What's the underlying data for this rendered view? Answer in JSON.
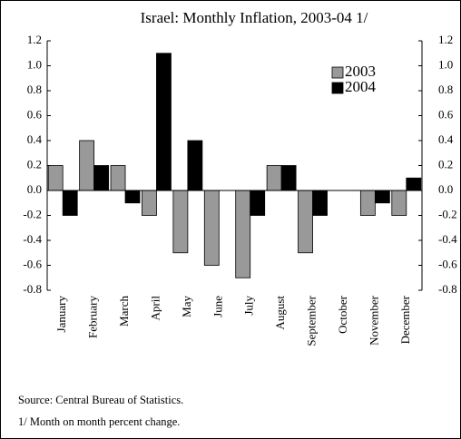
{
  "chart_data": {
    "type": "bar",
    "title": "Israel:  Monthly Inflation, 2003-04 1/",
    "categories": [
      "January",
      "February",
      "March",
      "April",
      "May",
      "June",
      "July",
      "August",
      "September",
      "October",
      "November",
      "December"
    ],
    "series": [
      {
        "name": "2003",
        "color": "#999999",
        "values": [
          0.2,
          0.4,
          0.2,
          -0.2,
          -0.5,
          -0.6,
          -0.7,
          0.2,
          -0.5,
          0,
          -0.2,
          -0.2
        ]
      },
      {
        "name": "2004",
        "color": "#000000",
        "values": [
          -0.2,
          0.2,
          -0.1,
          1.1,
          0.4,
          0,
          -0.2,
          0.2,
          -0.2,
          0,
          -0.1,
          0.1
        ]
      }
    ],
    "ylim": [
      -0.8,
      1.2
    ],
    "yticks": [
      1.2,
      {
        "value": 1.0,
        "label": "1.0"
      },
      0.8,
      0.6,
      0.4,
      0.2,
      {
        "value": 0.0,
        "label": "0.0"
      },
      -0.2,
      -0.4,
      -0.6,
      -0.8
    ],
    "y2lim": [
      -0.8,
      1.2
    ],
    "y2ticks": [
      1.2,
      {
        "value": 1.0,
        "label": "1.0"
      },
      0.8,
      0.6,
      0.4,
      0.2,
      {
        "value": 0.0,
        "label": "0.0"
      },
      -0.2,
      -0.4,
      -0.6,
      -0.8
    ],
    "legend": "upper right",
    "notes": [
      "Source:  Central Bureau of Statistics.",
      "1/ Month on month percent change."
    ]
  }
}
